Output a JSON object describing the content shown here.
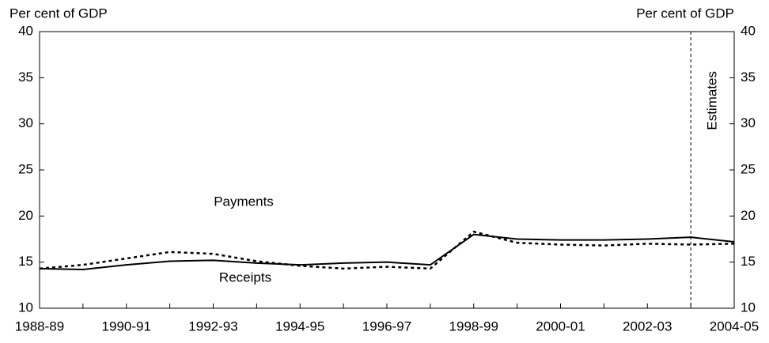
{
  "chart_data": {
    "type": "line",
    "y_label": "Per cent of GDP",
    "y2_label": "Per cent of GDP",
    "categories": [
      "1988-89",
      null,
      "1990-91",
      null,
      "1992-93",
      null,
      "1994-95",
      null,
      "1996-97",
      null,
      "1998-99",
      null,
      "2000-01",
      null,
      "2002-03",
      null,
      "2004-05"
    ],
    "series": [
      {
        "name": "Receipts",
        "color": "#000000",
        "dash": "solid",
        "values": [
          14.3,
          14.2,
          14.7,
          15.1,
          15.2,
          14.9,
          14.7,
          14.9,
          15.0,
          14.7,
          18.0,
          17.5,
          17.4,
          17.4,
          17.5,
          17.7,
          17.2
        ]
      },
      {
        "name": "Payments",
        "color": "#000000",
        "dash": "dotted",
        "values": [
          14.3,
          14.7,
          15.4,
          16.1,
          15.9,
          15.1,
          14.6,
          14.3,
          14.5,
          14.3,
          18.3,
          17.1,
          16.9,
          16.8,
          17.0,
          16.9,
          17.0
        ]
      }
    ],
    "ylim": [
      10,
      40
    ],
    "yticks": [
      10,
      15,
      20,
      25,
      30,
      35,
      40
    ],
    "y2lim": [
      10,
      40
    ],
    "y2ticks": [
      10,
      15,
      20,
      25,
      30,
      35,
      40
    ],
    "vline": {
      "category_index": 15,
      "label": "Estimates"
    }
  }
}
